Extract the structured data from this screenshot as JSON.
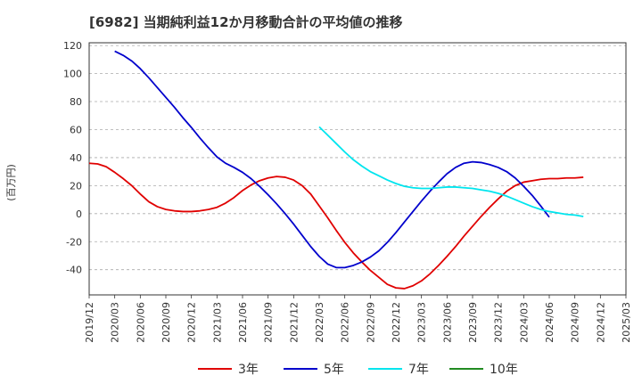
{
  "chart_data": {
    "type": "line",
    "title": "[6982]  当期純利益12か月移動合計の平均値の推移",
    "ylabel": "(百万円)",
    "ylim": [
      -58,
      122
    ],
    "yticks": [
      -40,
      -20,
      0,
      20,
      40,
      60,
      80,
      100,
      120
    ],
    "xlim": [
      "2019-12",
      "2025-03"
    ],
    "xticks": [
      "2019/12",
      "2020/03",
      "2020/06",
      "2020/09",
      "2020/12",
      "2021/03",
      "2021/06",
      "2021/09",
      "2021/12",
      "2022/03",
      "2022/06",
      "2022/09",
      "2022/12",
      "2023/03",
      "2023/06",
      "2023/09",
      "2023/12",
      "2024/03",
      "2024/06",
      "2024/09",
      "2024/12",
      "2025/03"
    ],
    "legend_position": "bottom",
    "grid": "horizontal-dashed",
    "series": [
      {
        "name": "3年",
        "color": "#e00000",
        "points": [
          [
            "2019-12",
            36
          ],
          [
            "2020-01",
            35.5
          ],
          [
            "2020-02",
            33.5
          ],
          [
            "2020-03",
            29.5
          ],
          [
            "2020-04",
            25
          ],
          [
            "2020-05",
            20
          ],
          [
            "2020-06",
            14
          ],
          [
            "2020-07",
            8.5
          ],
          [
            "2020-08",
            5
          ],
          [
            "2020-09",
            3
          ],
          [
            "2020-10",
            2
          ],
          [
            "2020-11",
            1.5
          ],
          [
            "2020-12",
            1.5
          ],
          [
            "2021-01",
            2
          ],
          [
            "2021-02",
            3
          ],
          [
            "2021-03",
            4.5
          ],
          [
            "2021-04",
            7.5
          ],
          [
            "2021-05",
            11.5
          ],
          [
            "2021-06",
            16.5
          ],
          [
            "2021-07",
            20.5
          ],
          [
            "2021-08",
            23.5
          ],
          [
            "2021-09",
            25.5
          ],
          [
            "2021-10",
            26.5
          ],
          [
            "2021-11",
            26
          ],
          [
            "2021-12",
            24
          ],
          [
            "2022-01",
            20
          ],
          [
            "2022-02",
            14
          ],
          [
            "2022-03",
            5.5
          ],
          [
            "2022-04",
            -3
          ],
          [
            "2022-05",
            -12
          ],
          [
            "2022-06",
            -20.5
          ],
          [
            "2022-07",
            -28
          ],
          [
            "2022-08",
            -34.5
          ],
          [
            "2022-09",
            -40.5
          ],
          [
            "2022-10",
            -45.5
          ],
          [
            "2022-11",
            -50.5
          ],
          [
            "2022-12",
            -53
          ],
          [
            "2023-01",
            -53.5
          ],
          [
            "2023-02",
            -51.5
          ],
          [
            "2023-03",
            -48
          ],
          [
            "2023-04",
            -43
          ],
          [
            "2023-05",
            -37
          ],
          [
            "2023-06",
            -30.5
          ],
          [
            "2023-07",
            -23.5
          ],
          [
            "2023-08",
            -16
          ],
          [
            "2023-09",
            -9
          ],
          [
            "2023-10",
            -2
          ],
          [
            "2023-11",
            4.5
          ],
          [
            "2023-12",
            10.5
          ],
          [
            "2024-01",
            16
          ],
          [
            "2024-02",
            20
          ],
          [
            "2024-03",
            22.5
          ],
          [
            "2024-04",
            23.5
          ],
          [
            "2024-05",
            24.5
          ],
          [
            "2024-06",
            25
          ],
          [
            "2024-07",
            25
          ],
          [
            "2024-08",
            25.5
          ],
          [
            "2024-09",
            25.5
          ],
          [
            "2024-10",
            26
          ]
        ]
      },
      {
        "name": "5年",
        "color": "#0000cc",
        "points": [
          [
            "2020-03",
            116
          ],
          [
            "2020-04",
            113
          ],
          [
            "2020-05",
            109
          ],
          [
            "2020-06",
            103.5
          ],
          [
            "2020-07",
            97
          ],
          [
            "2020-08",
            90
          ],
          [
            "2020-09",
            83
          ],
          [
            "2020-10",
            76
          ],
          [
            "2020-11",
            68.5
          ],
          [
            "2020-12",
            61.5
          ],
          [
            "2021-01",
            54
          ],
          [
            "2021-02",
            47
          ],
          [
            "2021-03",
            40.5
          ],
          [
            "2021-04",
            36
          ],
          [
            "2021-05",
            33
          ],
          [
            "2021-06",
            29.5
          ],
          [
            "2021-07",
            25
          ],
          [
            "2021-08",
            19.5
          ],
          [
            "2021-09",
            13.5
          ],
          [
            "2021-10",
            7
          ],
          [
            "2021-11",
            0
          ],
          [
            "2021-12",
            -7.5
          ],
          [
            "2022-01",
            -15.5
          ],
          [
            "2022-02",
            -23.5
          ],
          [
            "2022-03",
            -30.5
          ],
          [
            "2022-04",
            -36
          ],
          [
            "2022-05",
            -38.5
          ],
          [
            "2022-06",
            -38.5
          ],
          [
            "2022-07",
            -37
          ],
          [
            "2022-08",
            -34.5
          ],
          [
            "2022-09",
            -31
          ],
          [
            "2022-10",
            -26.5
          ],
          [
            "2022-11",
            -20.5
          ],
          [
            "2022-12",
            -13.5
          ],
          [
            "2023-01",
            -6
          ],
          [
            "2023-02",
            1.5
          ],
          [
            "2023-03",
            9
          ],
          [
            "2023-04",
            16
          ],
          [
            "2023-05",
            22.5
          ],
          [
            "2023-06",
            28.5
          ],
          [
            "2023-07",
            33
          ],
          [
            "2023-08",
            36
          ],
          [
            "2023-09",
            37
          ],
          [
            "2023-10",
            36.5
          ],
          [
            "2023-11",
            35
          ],
          [
            "2023-12",
            33
          ],
          [
            "2024-01",
            30
          ],
          [
            "2024-02",
            25.5
          ],
          [
            "2024-03",
            19.5
          ],
          [
            "2024-04",
            13
          ],
          [
            "2024-05",
            5.5
          ],
          [
            "2024-06",
            -2.5
          ]
        ]
      },
      {
        "name": "7年",
        "color": "#00e5ee",
        "points": [
          [
            "2022-03",
            62
          ],
          [
            "2022-04",
            56
          ],
          [
            "2022-05",
            50
          ],
          [
            "2022-06",
            44
          ],
          [
            "2022-07",
            38.5
          ],
          [
            "2022-08",
            34
          ],
          [
            "2022-09",
            30
          ],
          [
            "2022-10",
            27
          ],
          [
            "2022-11",
            24
          ],
          [
            "2022-12",
            21.5
          ],
          [
            "2023-01",
            19.5
          ],
          [
            "2023-02",
            18.5
          ],
          [
            "2023-03",
            18
          ],
          [
            "2023-04",
            18
          ],
          [
            "2023-05",
            18.5
          ],
          [
            "2023-06",
            19
          ],
          [
            "2023-07",
            19
          ],
          [
            "2023-08",
            18.5
          ],
          [
            "2023-09",
            18
          ],
          [
            "2023-10",
            17
          ],
          [
            "2023-11",
            16
          ],
          [
            "2023-12",
            14.5
          ],
          [
            "2024-01",
            12.5
          ],
          [
            "2024-02",
            10
          ],
          [
            "2024-03",
            7.5
          ],
          [
            "2024-04",
            5
          ],
          [
            "2024-05",
            3
          ],
          [
            "2024-06",
            1.5
          ],
          [
            "2024-07",
            0.5
          ],
          [
            "2024-08",
            -0.5
          ],
          [
            "2024-09",
            -1
          ],
          [
            "2024-10",
            -2
          ]
        ]
      },
      {
        "name": "10年",
        "color": "#228b22",
        "points": []
      }
    ]
  }
}
